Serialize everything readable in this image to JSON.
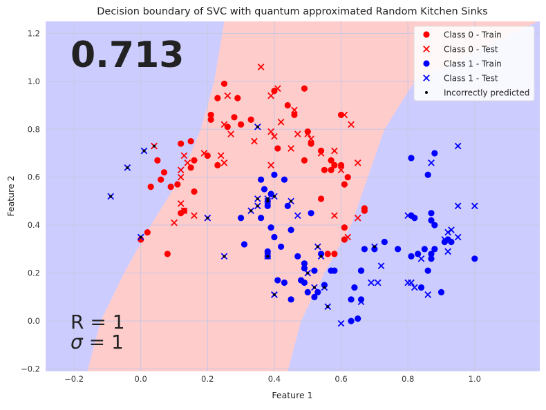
{
  "chart_data": {
    "type": "scatter",
    "title": "Decision boundary of SVC with quantum approximated Random Kitchen Sinks",
    "xlabel": "Feature 1",
    "ylabel": "Feature 2",
    "xlim": [
      -0.285,
      1.195
    ],
    "ylim": [
      -0.21,
      1.25
    ],
    "x_ticks": [
      -0.2,
      0.0,
      0.2,
      0.4,
      0.6,
      0.8,
      1.0
    ],
    "y_ticks": [
      -0.2,
      0.0,
      0.2,
      0.4,
      0.6,
      0.8,
      1.0,
      1.2
    ],
    "x_tick_labels": [
      "−0.2",
      "0.0",
      "0.2",
      "0.4",
      "0.6",
      "0.8",
      "1.0"
    ],
    "y_tick_labels": [
      "−0.2",
      "0.0",
      "0.2",
      "0.4",
      "0.6",
      "0.8",
      "1.0",
      "1.2"
    ],
    "grid": true,
    "score": "0.713",
    "params": {
      "r_line": "R = 1",
      "sigma_symbol": "σ",
      "sigma_rest": " = 1"
    },
    "legend_position": "top-right",
    "colors": {
      "class0": "#ff0000",
      "class1": "#0000ff",
      "region0": "#ffcccc",
      "region1": "#ccccff",
      "incorrect": "#000000",
      "grid": "#c8c8e0"
    },
    "region_boundary": {
      "description": "class 0 (red) region lies between the two boundaries; class 1 (blue) outside",
      "left": [
        [
          -0.16,
          -0.21
        ],
        [
          -0.12,
          0.0
        ],
        [
          -0.05,
          0.2
        ],
        [
          0.03,
          0.4
        ],
        [
          0.12,
          0.6
        ],
        [
          0.18,
          0.8
        ],
        [
          0.22,
          1.0
        ],
        [
          0.25,
          1.25
        ]
      ],
      "right": [
        [
          0.44,
          -0.21
        ],
        [
          0.48,
          0.0
        ],
        [
          0.55,
          0.2
        ],
        [
          0.63,
          0.4
        ],
        [
          0.68,
          0.6
        ],
        [
          0.73,
          0.8
        ],
        [
          0.82,
          1.0
        ],
        [
          1.19,
          1.25
        ]
      ]
    },
    "legend": [
      {
        "label": "Class 0 - Train",
        "marker": "circle",
        "color": "#ff0000"
      },
      {
        "label": "Class 0 - Test",
        "marker": "x",
        "color": "#ff0000"
      },
      {
        "label": "Class 1 - Train",
        "marker": "circle",
        "color": "#0000ff"
      },
      {
        "label": "Class 1 - Test",
        "marker": "x",
        "color": "#0000ff"
      },
      {
        "label": "Incorrectly predicted",
        "marker": "dot",
        "color": "#000000"
      }
    ],
    "series": [
      {
        "name": "Class 0 - Train",
        "marker": "circle",
        "color": "#ff0000",
        "points": [
          [
            0.25,
            0.99
          ],
          [
            0.29,
            0.93
          ],
          [
            0.23,
            0.93
          ],
          [
            0.21,
            0.86
          ],
          [
            0.21,
            0.84
          ],
          [
            0.26,
            0.81
          ],
          [
            0.28,
            0.85
          ],
          [
            0.3,
            0.82
          ],
          [
            0.33,
            0.84
          ],
          [
            0.4,
            0.96
          ],
          [
            0.44,
            0.9
          ],
          [
            0.46,
            0.86
          ],
          [
            0.49,
            0.97
          ],
          [
            0.5,
            0.79
          ],
          [
            0.51,
            0.74
          ],
          [
            0.54,
            0.71
          ],
          [
            0.57,
            0.67
          ],
          [
            0.58,
            0.65
          ],
          [
            0.6,
            0.86
          ],
          [
            0.6,
            0.65
          ],
          [
            0.62,
            0.6
          ],
          [
            0.61,
            0.57
          ],
          [
            0.15,
            0.75
          ],
          [
            0.12,
            0.74
          ],
          [
            0.16,
            0.67
          ],
          [
            0.15,
            0.64
          ],
          [
            0.16,
            0.54
          ],
          [
            0.2,
            0.69
          ],
          [
            0.23,
            0.65
          ],
          [
            0.07,
            0.62
          ],
          [
            0.05,
            0.67
          ],
          [
            0.06,
            0.59
          ],
          [
            0.11,
            0.57
          ],
          [
            0.09,
            0.56
          ],
          [
            0.03,
            0.56
          ],
          [
            0.41,
            0.72
          ],
          [
            0.49,
            0.67
          ],
          [
            0.55,
            0.63
          ],
          [
            0.57,
            0.63
          ],
          [
            0.58,
            0.65
          ],
          [
            0.54,
            0.51
          ],
          [
            0.61,
            0.39
          ],
          [
            0.61,
            0.34
          ],
          [
            0.67,
            0.47
          ],
          [
            0.67,
            0.46
          ],
          [
            0.56,
            0.28
          ],
          [
            0.58,
            0.28
          ],
          [
            0.13,
            0.46
          ],
          [
            0.12,
            0.45
          ],
          [
            0.02,
            0.37
          ],
          [
            0.0,
            0.34
          ],
          [
            0.08,
            0.28
          ]
        ]
      },
      {
        "name": "Class 0 - Test",
        "marker": "x",
        "color": "#ff0000",
        "points": [
          [
            0.36,
            1.06
          ],
          [
            0.41,
            0.97
          ],
          [
            0.39,
            0.94
          ],
          [
            0.26,
            0.94
          ],
          [
            0.46,
            0.88
          ],
          [
            0.42,
            0.83
          ],
          [
            0.47,
            0.78
          ],
          [
            0.39,
            0.79
          ],
          [
            0.4,
            0.77
          ],
          [
            0.45,
            0.72
          ],
          [
            0.51,
            0.76
          ],
          [
            0.54,
            0.7
          ],
          [
            0.61,
            0.86
          ],
          [
            0.63,
            0.82
          ],
          [
            0.58,
            0.71
          ],
          [
            0.65,
            0.66
          ],
          [
            0.6,
            0.63
          ],
          [
            0.34,
            0.75
          ],
          [
            0.27,
            0.78
          ],
          [
            0.25,
            0.82
          ],
          [
            0.19,
            0.7
          ],
          [
            0.13,
            0.69
          ],
          [
            0.12,
            0.63
          ],
          [
            0.12,
            0.6
          ],
          [
            0.14,
            0.66
          ],
          [
            0.24,
            0.69
          ],
          [
            0.25,
            0.66
          ],
          [
            0.39,
            0.65
          ],
          [
            0.5,
            0.78
          ],
          [
            0.16,
            0.44
          ],
          [
            0.12,
            0.49
          ],
          [
            0.13,
            0.46
          ],
          [
            0.04,
            0.73
          ],
          [
            0.04,
            0.73
          ],
          [
            0.1,
            0.41
          ],
          [
            0.58,
            0.44
          ],
          [
            0.62,
            0.35
          ],
          [
            0.65,
            0.43
          ]
        ]
      },
      {
        "name": "Class 1 - Train",
        "marker": "circle",
        "color": "#0000ff",
        "points": [
          [
            0.36,
            0.59
          ],
          [
            0.37,
            0.55
          ],
          [
            0.39,
            0.53
          ],
          [
            0.38,
            0.5
          ],
          [
            0.38,
            0.48
          ],
          [
            0.4,
            0.61
          ],
          [
            0.43,
            0.59
          ],
          [
            0.44,
            0.48
          ],
          [
            0.3,
            0.43
          ],
          [
            0.31,
            0.32
          ],
          [
            0.36,
            0.43
          ],
          [
            0.39,
            0.39
          ],
          [
            0.4,
            0.35
          ],
          [
            0.38,
            0.29
          ],
          [
            0.38,
            0.27
          ],
          [
            0.42,
            0.31
          ],
          [
            0.45,
            0.38
          ],
          [
            0.47,
            0.27
          ],
          [
            0.51,
            0.45
          ],
          [
            0.49,
            0.22
          ],
          [
            0.49,
            0.24
          ],
          [
            0.52,
            0.21
          ],
          [
            0.54,
            0.28
          ],
          [
            0.57,
            0.21
          ],
          [
            0.58,
            0.21
          ],
          [
            0.49,
            0.16
          ],
          [
            0.48,
            0.17
          ],
          [
            0.5,
            0.12
          ],
          [
            0.45,
            0.09
          ],
          [
            0.41,
            0.17
          ],
          [
            0.43,
            0.16
          ],
          [
            0.53,
            0.12
          ],
          [
            0.52,
            0.1
          ],
          [
            0.55,
            0.15
          ],
          [
            0.63,
            0.0
          ],
          [
            0.65,
            0.01
          ],
          [
            0.64,
            0.14
          ],
          [
            0.66,
            0.09
          ],
          [
            0.66,
            0.21
          ],
          [
            0.67,
            0.3
          ],
          [
            0.7,
            0.3
          ],
          [
            0.73,
            0.33
          ],
          [
            0.77,
            0.3
          ],
          [
            0.81,
            0.27
          ],
          [
            0.83,
            0.28
          ],
          [
            0.85,
            0.3
          ],
          [
            0.86,
            0.21
          ],
          [
            0.86,
            0.61
          ],
          [
            0.81,
            0.68
          ],
          [
            0.88,
            0.7
          ],
          [
            0.87,
            0.45
          ],
          [
            0.87,
            0.42
          ],
          [
            0.88,
            0.4
          ],
          [
            0.82,
            0.43
          ],
          [
            0.87,
            0.26
          ],
          [
            0.88,
            0.3
          ],
          [
            0.91,
            0.33
          ],
          [
            0.92,
            0.34
          ],
          [
            0.93,
            0.33
          ],
          [
            0.9,
            0.12
          ],
          [
            0.84,
            0.14
          ],
          [
            0.81,
            0.44
          ],
          [
            1.0,
            0.26
          ],
          [
            0.87,
            0.28
          ],
          [
            0.63,
            0.09
          ],
          [
            0.66,
            0.21
          ]
        ]
      },
      {
        "name": "Class 1 - Test",
        "marker": "x",
        "color": "#0000ff",
        "points": [
          [
            0.95,
            0.73
          ],
          [
            0.87,
            0.66
          ],
          [
            1.0,
            0.48
          ],
          [
            0.95,
            0.48
          ],
          [
            0.8,
            0.44
          ],
          [
            0.92,
            0.37
          ],
          [
            0.93,
            0.38
          ],
          [
            0.95,
            0.35
          ],
          [
            0.91,
            0.34
          ],
          [
            0.92,
            0.29
          ],
          [
            0.84,
            0.26
          ],
          [
            0.82,
            0.14
          ],
          [
            0.86,
            0.11
          ],
          [
            0.8,
            0.16
          ],
          [
            0.81,
            0.16
          ],
          [
            0.72,
            0.23
          ],
          [
            0.71,
            0.16
          ],
          [
            0.69,
            0.16
          ],
          [
            0.66,
            0.08
          ],
          [
            0.6,
            -0.01
          ],
          [
            0.38,
            0.5
          ],
          [
            0.35,
            0.51
          ],
          [
            0.33,
            0.46
          ],
          [
            0.35,
            0.48
          ],
          [
            0.38,
            0.51
          ],
          [
            0.4,
            0.52
          ],
          [
            0.45,
            0.5
          ],
          [
            0.47,
            0.44
          ],
          [
            0.53,
            0.31
          ],
          [
            0.54,
            0.27
          ],
          [
            0.5,
            0.2
          ],
          [
            0.52,
            0.14
          ],
          [
            0.55,
            0.14
          ],
          [
            0.56,
            0.06
          ],
          [
            0.4,
            0.11
          ],
          [
            0.4,
            0.11
          ],
          [
            0.35,
            0.81
          ],
          [
            0.2,
            0.43
          ],
          [
            0.25,
            0.27
          ],
          [
            0.38,
            0.27
          ],
          [
            -0.09,
            0.52
          ],
          [
            -0.04,
            0.64
          ],
          [
            0.01,
            0.71
          ],
          [
            0.0,
            0.35
          ],
          [
            0.7,
            0.31
          ]
        ]
      },
      {
        "name": "Incorrectly predicted",
        "marker": "dot",
        "color": "#000000",
        "points": [
          [
            -0.09,
            0.52
          ],
          [
            -0.04,
            0.64
          ],
          [
            0.01,
            0.71
          ],
          [
            0.04,
            0.73
          ],
          [
            0.0,
            0.35
          ],
          [
            0.2,
            0.43
          ],
          [
            0.25,
            0.27
          ],
          [
            0.33,
            0.46
          ],
          [
            0.35,
            0.48
          ],
          [
            0.35,
            0.51
          ],
          [
            0.35,
            0.81
          ],
          [
            0.38,
            0.5
          ],
          [
            0.38,
            0.51
          ],
          [
            0.4,
            0.52
          ],
          [
            0.38,
            0.27
          ],
          [
            0.4,
            0.11
          ],
          [
            0.45,
            0.5
          ],
          [
            0.5,
            0.2
          ],
          [
            0.52,
            0.14
          ],
          [
            0.53,
            0.31
          ],
          [
            0.54,
            0.27
          ],
          [
            0.55,
            0.14
          ],
          [
            0.56,
            0.06
          ],
          [
            0.7,
            0.31
          ]
        ]
      }
    ]
  }
}
